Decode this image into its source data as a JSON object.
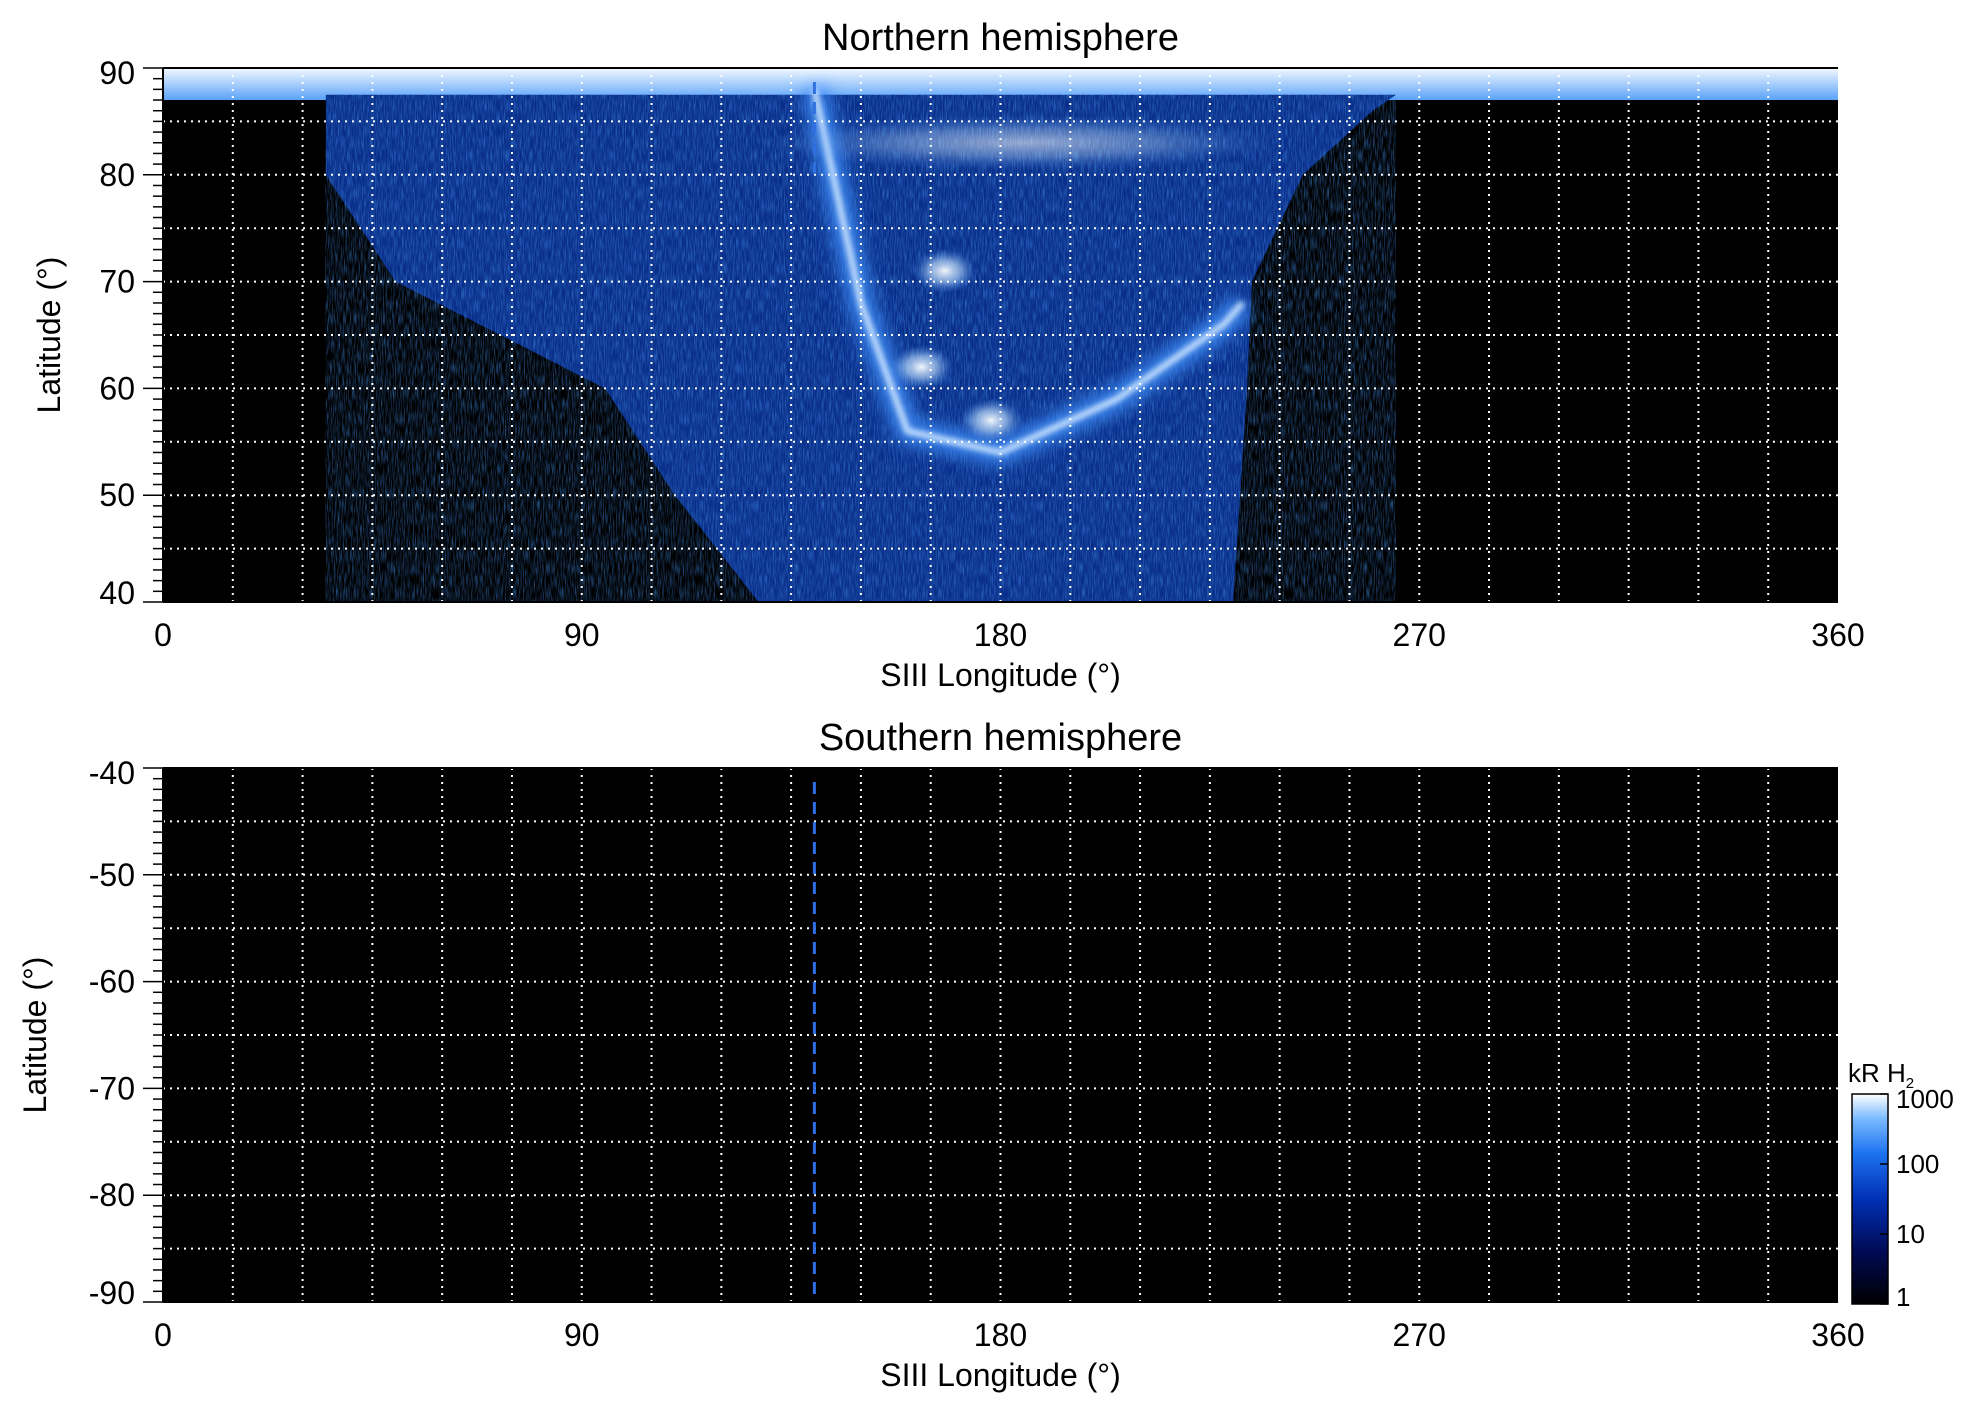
{
  "chart_data": [
    {
      "type": "heatmap",
      "title": "Northern hemisphere",
      "xlabel": "SIII Longitude (°)",
      "ylabel": "Latitude (°)",
      "xlim": [
        0,
        360
      ],
      "ylim": [
        40,
        90
      ],
      "x_ticks": [
        "0",
        "90",
        "180",
        "270",
        "360"
      ],
      "y_ticks": [
        "40",
        "50",
        "60",
        "70",
        "80",
        "90"
      ],
      "grid": true,
      "reference_line_longitude": 140,
      "emission_region": {
        "polar_cap_lat_min": 87,
        "lon_range_at_cap": [
          0,
          360
        ],
        "lon_range_at_80": [
          35,
          245
        ],
        "lon_range_at_60": [
          95,
          233
        ],
        "lon_range_at_40": [
          128,
          230
        ],
        "main_oval_arc": [
          [
            140,
            88
          ],
          [
            150,
            68
          ],
          [
            160,
            56
          ],
          [
            180,
            54
          ],
          [
            205,
            59
          ],
          [
            228,
            66
          ],
          [
            232,
            68
          ]
        ],
        "bright_spots": [
          [
            168,
            71
          ],
          [
            163,
            62
          ],
          [
            178,
            57
          ]
        ]
      }
    },
    {
      "type": "heatmap",
      "title": "Southern hemisphere",
      "xlabel": "SIII Longitude (°)",
      "ylabel": "Latitude (°)",
      "xlim": [
        0,
        360
      ],
      "ylim": [
        -90,
        -40
      ],
      "x_ticks": [
        "0",
        "90",
        "180",
        "270",
        "360"
      ],
      "y_ticks": [
        "-40",
        "-50",
        "-60",
        "-70",
        "-80",
        "-90"
      ],
      "grid": true,
      "reference_line_longitude": 140,
      "emission_region": null
    }
  ],
  "colorbar": {
    "title": "kR H",
    "title_subscript": "2",
    "scale": "log",
    "range": [
      1,
      1000
    ],
    "ticks": [
      "1000",
      "100",
      "10",
      "1"
    ],
    "colors": [
      "#000000",
      "#000a55",
      "#0030b4",
      "#1e73f0",
      "#78b9ff",
      "#ffffff"
    ]
  }
}
